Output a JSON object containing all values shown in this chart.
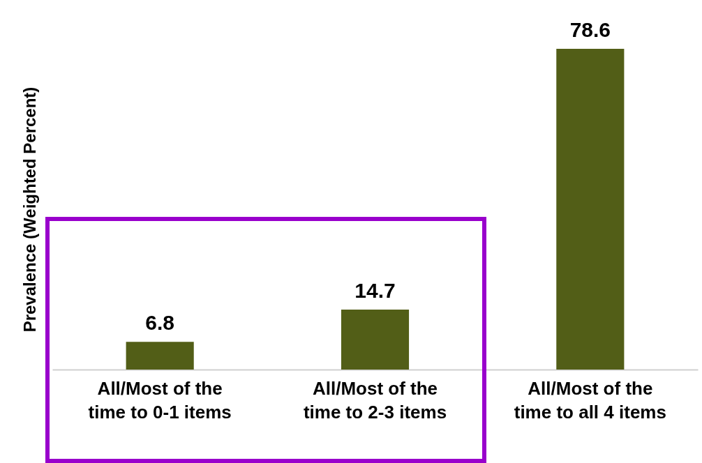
{
  "chart_data": {
    "type": "bar",
    "ylabel": "Prevalence (Weighted Percent)",
    "categories": [
      "All/Most of the time to 0-1 items",
      "All/Most of the time to 2-3 items",
      "All/Most of the time to all 4 items"
    ],
    "values": [
      6.8,
      14.7,
      78.6
    ],
    "color": "#525e17",
    "data_labels": true,
    "tick_labels": "x"
  }
}
